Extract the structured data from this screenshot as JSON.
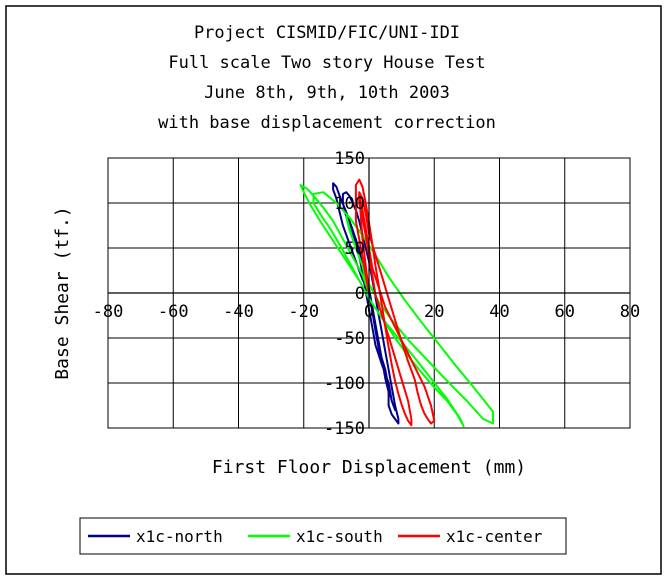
{
  "colors": {
    "north": "#00008b",
    "south": "#00ff00",
    "center": "#ff0000",
    "axis": "#000000",
    "grid": "#000000",
    "frame": "#000000"
  },
  "chart_data": {
    "type": "line",
    "title_lines": [
      "Project CISMID/FIC/UNI-IDI",
      "Full scale Two story House Test",
      "June 8th, 9th, 10th 2003",
      "with base displacement correction"
    ],
    "xlabel": "First Floor Displacement (mm)",
    "ylabel": "Base Shear (tf.)",
    "xlim": [
      -80,
      80
    ],
    "ylim": [
      -150,
      150
    ],
    "xticks": [
      -80,
      -60,
      -40,
      -20,
      0,
      20,
      40,
      60,
      80
    ],
    "yticks": [
      -150,
      -100,
      -50,
      0,
      50,
      100,
      150
    ],
    "xtick_labels": [
      "-80",
      "-60",
      "-40",
      "-20",
      "0",
      "20",
      "40",
      "60",
      "80"
    ],
    "ytick_labels": [
      "-150",
      "-100",
      "-50",
      "0",
      "50",
      "100",
      "150"
    ],
    "grid": true,
    "legend_position": "bottom",
    "series": [
      {
        "name": "x1c-north",
        "color_key": "north",
        "x": [
          0,
          -2,
          -4,
          -6,
          -8,
          -9,
          -10,
          -11,
          -11,
          -10,
          -9,
          -7,
          -5,
          -3,
          -1,
          0,
          1,
          2,
          3,
          4,
          5,
          6,
          6,
          7,
          8,
          9,
          9,
          8,
          7,
          6,
          5,
          4,
          3,
          2,
          1,
          0,
          -1,
          -2,
          -3,
          -4,
          -5,
          -6,
          -7,
          -8,
          -8,
          -7,
          -5,
          -3,
          -1,
          0,
          1,
          2,
          3,
          5,
          6,
          7,
          8,
          7,
          6,
          4,
          2,
          1,
          0,
          -1,
          -2,
          -3,
          -4,
          -2,
          0
        ],
        "y": [
          0,
          15,
          35,
          55,
          75,
          90,
          105,
          115,
          122,
          118,
          108,
          90,
          70,
          48,
          25,
          5,
          -15,
          -35,
          -55,
          -75,
          -95,
          -110,
          -125,
          -135,
          -140,
          -145,
          -140,
          -125,
          -105,
          -85,
          -65,
          -45,
          -25,
          -5,
          15,
          35,
          50,
          65,
          80,
          92,
          100,
          108,
          112,
          110,
          100,
          85,
          65,
          42,
          20,
          0,
          -20,
          -42,
          -62,
          -85,
          -105,
          -120,
          -130,
          -120,
          -100,
          -80,
          -58,
          -38,
          -18,
          2,
          22,
          42,
          60,
          30,
          0
        ]
      },
      {
        "name": "x1c-south",
        "color_key": "south",
        "x": [
          0,
          -2,
          -5,
          -8,
          -11,
          -14,
          -17,
          -19,
          -21,
          -20,
          -18,
          -15,
          -11,
          -7,
          -3,
          0,
          4,
          8,
          12,
          16,
          20,
          24,
          27,
          29,
          28,
          24,
          19,
          14,
          9,
          4,
          0,
          -3,
          -6,
          -9,
          -12,
          -15,
          -17,
          -17,
          -14,
          -10,
          -6,
          -2,
          2,
          6,
          11,
          16,
          21,
          26,
          31,
          35,
          38,
          38,
          35,
          30,
          24,
          18,
          12,
          7,
          3,
          0,
          -2,
          -4,
          -6,
          -7,
          -5,
          -2,
          0
        ],
        "y": [
          0,
          20,
          40,
          60,
          80,
          95,
          108,
          116,
          120,
          112,
          98,
          80,
          58,
          36,
          14,
          -6,
          -28,
          -50,
          -70,
          -88,
          -105,
          -120,
          -135,
          -148,
          -140,
          -118,
          -95,
          -72,
          -50,
          -28,
          -6,
          14,
          34,
          54,
          72,
          88,
          100,
          110,
          112,
          100,
          84,
          64,
          42,
          18,
          -8,
          -32,
          -55,
          -78,
          -100,
          -118,
          -132,
          -145,
          -140,
          -120,
          -98,
          -75,
          -52,
          -30,
          -10,
          10,
          30,
          50,
          70,
          85,
          60,
          30,
          0
        ]
      },
      {
        "name": "x1c-center",
        "color_key": "center",
        "x": [
          0,
          -1,
          -2,
          -3,
          -4,
          -4,
          -4,
          -3,
          -2,
          -1,
          0,
          1,
          2,
          3,
          4,
          5,
          6,
          7,
          8,
          9,
          10,
          11,
          12,
          13,
          13,
          12,
          10,
          8,
          6,
          4,
          2,
          1,
          0,
          -1,
          -2,
          -3,
          -3,
          -2,
          -1,
          0,
          2,
          4,
          6,
          8,
          10,
          12,
          14,
          15,
          16,
          17,
          18,
          19,
          20,
          19,
          17,
          14,
          11,
          8,
          5,
          3,
          1,
          0,
          -1,
          -2,
          -3,
          -2,
          0
        ],
        "y": [
          0,
          20,
          40,
          60,
          80,
          100,
          120,
          126,
          118,
          100,
          78,
          55,
          30,
          8,
          -15,
          -38,
          -60,
          -80,
          -98,
          -112,
          -124,
          -134,
          -142,
          -147,
          -140,
          -120,
          -96,
          -72,
          -48,
          -25,
          -2,
          20,
          42,
          64,
          84,
          100,
          112,
          105,
          88,
          66,
          42,
          18,
          -6,
          -30,
          -54,
          -76,
          -96,
          -112,
          -125,
          -134,
          -140,
          -145,
          -142,
          -125,
          -104,
          -82,
          -60,
          -38,
          -16,
          6,
          28,
          50,
          72,
          92,
          110,
          60,
          0
        ]
      }
    ]
  }
}
